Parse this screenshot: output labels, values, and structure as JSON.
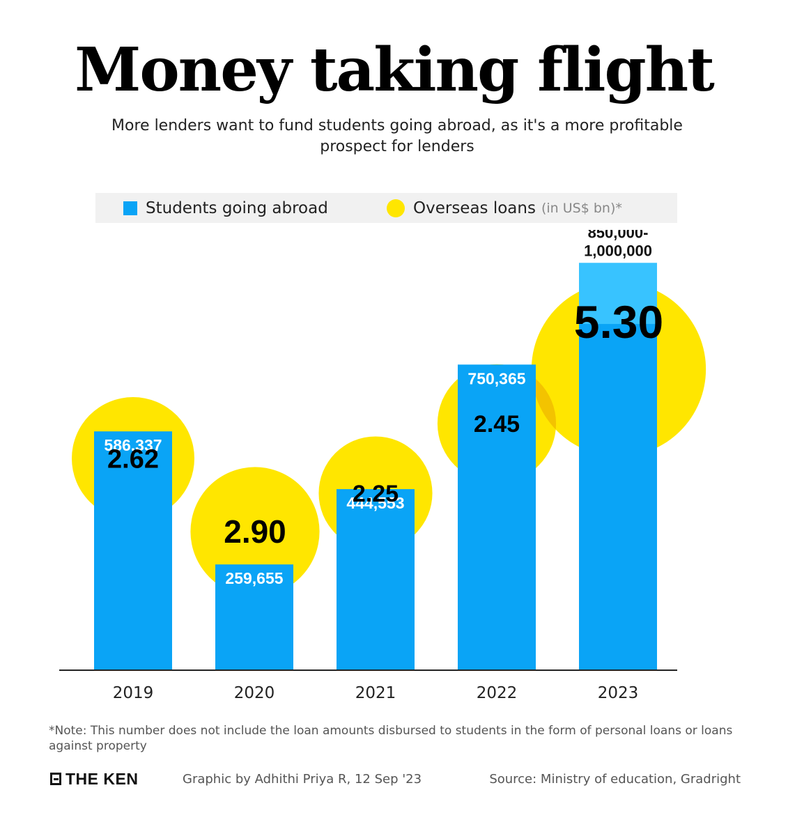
{
  "header": {
    "title": "Money taking flight",
    "subtitle": "More lenders want to fund students going abroad, as it's a more profitable prospect for lenders"
  },
  "legend": {
    "students_label": "Students going abroad",
    "loans_label": "Overseas loans",
    "loans_unit": "(in US$ bn)*"
  },
  "colors": {
    "bar": "#0aa4f6",
    "bar_range": "#38c3ff",
    "bubble": "#ffe600",
    "bubble_overlap": "#f3c300"
  },
  "chart_data": {
    "type": "bar",
    "categories": [
      "2019",
      "2020",
      "2021",
      "2022",
      "2023"
    ],
    "series": [
      {
        "name": "Students going abroad",
        "values": [
          586337,
          259655,
          444553,
          750365,
          1000000
        ],
        "range_low": [
          null,
          null,
          null,
          null,
          850000
        ],
        "labels": [
          "586,337",
          "259,655",
          "444,553",
          "750,365",
          "850,000-\n1,000,000"
        ]
      },
      {
        "name": "Overseas loans (in US$ bn)*",
        "values": [
          2.62,
          2.9,
          2.25,
          2.45,
          5.3
        ],
        "labels": [
          "2.62",
          "2.90",
          "2.25",
          "2.45",
          "5.30"
        ],
        "shape": "bubble"
      }
    ],
    "ylim": [
      0,
      1300000
    ],
    "grid": false,
    "legend": "top"
  },
  "footer": {
    "note": "*Note: This number does not include the loan amounts disbursed to students in the form of personal loans or loans against property",
    "logo": "THE KEN",
    "credit": "Graphic by Adhithi Priya R, 12 Sep '23",
    "source": "Source: Ministry of education, Gradright"
  }
}
